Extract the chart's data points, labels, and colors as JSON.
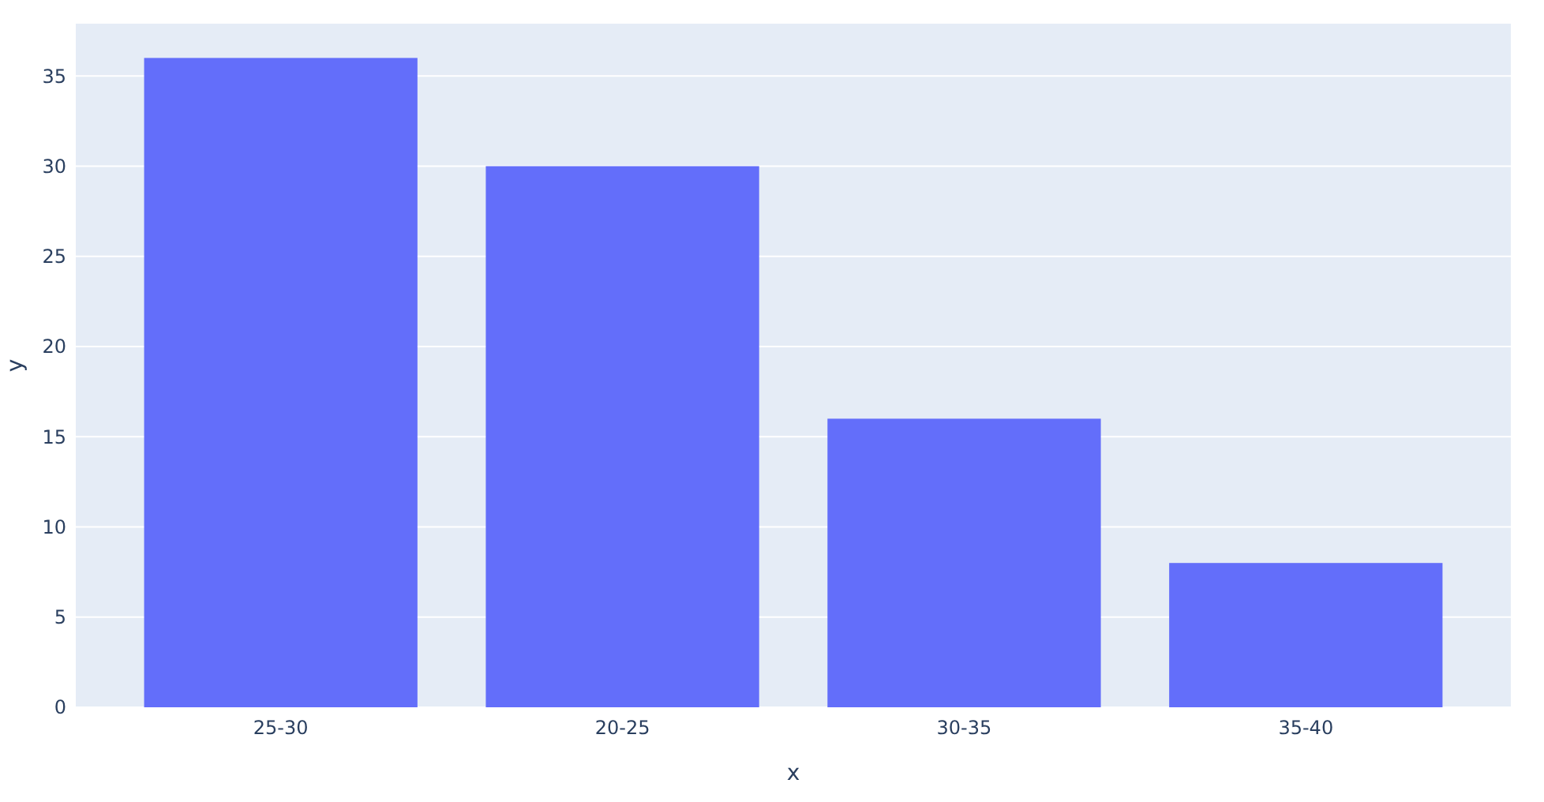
{
  "chart_data": {
    "type": "bar",
    "xlabel": "x",
    "ylabel": "y",
    "categories": [
      "25-30",
      "20-25",
      "30-35",
      "35-40"
    ],
    "values": [
      36,
      30,
      16,
      8
    ],
    "color": "#636efa",
    "ylim": [
      0,
      37.9
    ],
    "yticks": [
      0,
      5,
      10,
      15,
      20,
      25,
      30,
      35
    ],
    "grid": "y"
  }
}
